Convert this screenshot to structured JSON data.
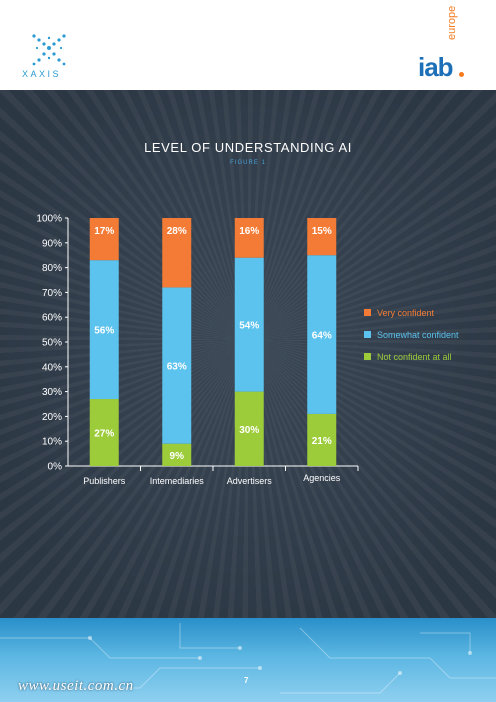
{
  "header": {
    "left_logo_text": "XAXIS",
    "right_logo_text": "iab",
    "right_logo_sub": "europe"
  },
  "colors": {
    "very": "#f47b35",
    "somewhat": "#5cc2ee",
    "not": "#9ccc3a",
    "background": "#2f3b48"
  },
  "figure": {
    "title": "LEVEL OF UNDERSTANDING AI",
    "subtitle": "FIGURE 1"
  },
  "footer": {
    "page_number": "7",
    "watermark": "www.useit.com.cn"
  },
  "chart_data": {
    "type": "bar",
    "stacked": true,
    "categories": [
      "Publishers",
      "Intemediaries",
      "Advertisers",
      "Agencies"
    ],
    "series": [
      {
        "name": "Not confident at all",
        "values": [
          27,
          9,
          30,
          21
        ],
        "labels": [
          "27%",
          "9%",
          "30%",
          "21%"
        ]
      },
      {
        "name": "Somewhat confident",
        "values": [
          56,
          63,
          54,
          64
        ],
        "labels": [
          "56%",
          "63%",
          "54%",
          "64%"
        ]
      },
      {
        "name": "Very confident",
        "values": [
          17,
          28,
          16,
          15
        ],
        "labels": [
          "17%",
          "28%",
          "16%",
          "15%"
        ]
      }
    ],
    "legend_order": [
      "Very confident",
      "Somewhat confident",
      "Not confident at all"
    ],
    "yticks": [
      "0%",
      "10%",
      "20%",
      "30%",
      "40%",
      "50%",
      "60%",
      "70%",
      "80%",
      "90%",
      "100%"
    ],
    "ylim": [
      0,
      100
    ],
    "legend_position": "right"
  }
}
